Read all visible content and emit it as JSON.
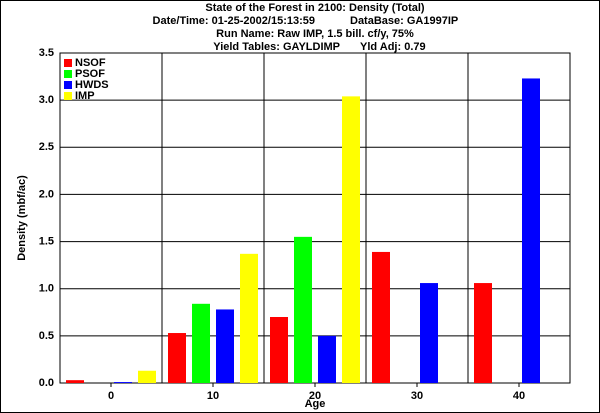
{
  "chart_data": {
    "type": "bar",
    "title": "State of the Forest in 2100: Density (Total)",
    "subtitle": [
      [
        "Date/Time: 01-25-2002/15:13:59",
        "DataBase: GA1997IP"
      ],
      [
        "Run Name: Raw IMP, 1.5 bill. cf/y, 75%"
      ],
      [
        "Yield Tables: GAYLDIMP",
        "Yld Adj: 0.79"
      ]
    ],
    "x_label": "Age",
    "y_label": "Density (mbf/ac)",
    "categories": [
      "0",
      "10",
      "20",
      "30",
      "40"
    ],
    "series": [
      {
        "name": "NSOF",
        "color": "#ff0000",
        "values": [
          0.03,
          0.53,
          0.7,
          1.39,
          1.06
        ]
      },
      {
        "name": "PSOF",
        "color": "#00ff00",
        "values": [
          0,
          0.84,
          1.55,
          0,
          0
        ]
      },
      {
        "name": "HWDS",
        "color": "#0000ff",
        "values": [
          0.01,
          0.78,
          0.5,
          1.06,
          3.23
        ]
      },
      {
        "name": "IMP",
        "color": "#ffff00",
        "values": [
          0.13,
          1.37,
          3.04,
          0,
          0
        ]
      }
    ],
    "ylim": [
      0,
      3.5
    ],
    "yticks": [
      {
        "value": 0,
        "label": "0.0"
      },
      0.5,
      {
        "value": 1,
        "label": "1.0"
      },
      1.5,
      {
        "value": 2,
        "label": "2.0"
      },
      2.5,
      {
        "value": 3,
        "label": "3.0"
      },
      3.5
    ],
    "grid": true,
    "legend": "top-left"
  }
}
